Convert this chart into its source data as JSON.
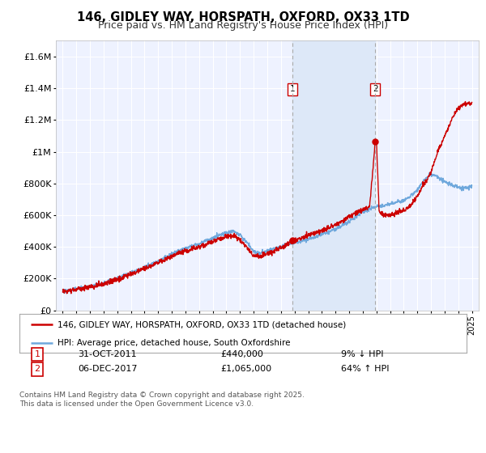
{
  "title": "146, GIDLEY WAY, HORSPATH, OXFORD, OX33 1TD",
  "subtitle": "Price paid vs. HM Land Registry's House Price Index (HPI)",
  "ylim": [
    0,
    1700000
  ],
  "yticks": [
    0,
    200000,
    400000,
    600000,
    800000,
    1000000,
    1200000,
    1400000,
    1600000
  ],
  "ytick_labels": [
    "£0",
    "£200K",
    "£400K",
    "£600K",
    "£800K",
    "£1M",
    "£1.2M",
    "£1.4M",
    "£1.6M"
  ],
  "xlim_start": 1994.5,
  "xlim_end": 2025.5,
  "hpi_color": "#6fa8dc",
  "price_color": "#cc0000",
  "sale1_year": 2011.83,
  "sale1_price": 440000,
  "sale1_label": "1",
  "sale2_year": 2017.92,
  "sale2_price": 1065000,
  "sale2_label": "2",
  "legend_line1": "146, GIDLEY WAY, HORSPATH, OXFORD, OX33 1TD (detached house)",
  "legend_line2": "HPI: Average price, detached house, South Oxfordshire",
  "annotation1_date": "31-OCT-2011",
  "annotation1_price": "£440,000",
  "annotation1_hpi": "9% ↓ HPI",
  "annotation2_date": "06-DEC-2017",
  "annotation2_price": "£1,065,000",
  "annotation2_hpi": "64% ↑ HPI",
  "footer": "Contains HM Land Registry data © Crown copyright and database right 2025.\nThis data is licensed under the Open Government Licence v3.0.",
  "background_color": "#ffffff",
  "plot_bg_color": "#eef2ff",
  "shaded_region_color": "#dde8f8",
  "grid_color": "#ffffff",
  "vline_color": "#aaaaaa",
  "title_fontsize": 10.5,
  "subtitle_fontsize": 9
}
